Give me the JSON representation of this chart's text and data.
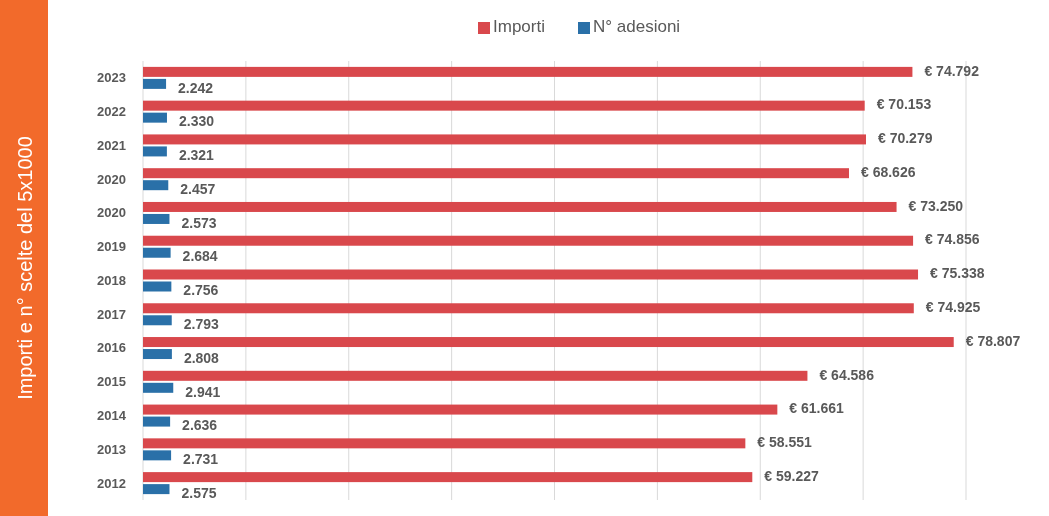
{
  "chart_data": {
    "type": "bar",
    "orientation": "horizontal",
    "ylabel": "Importi e n° scelte del 5x1000",
    "categories": [
      "2023",
      "2022",
      "2021",
      "2020",
      "2020",
      "2019",
      "2018",
      "2017",
      "2016",
      "2015",
      "2014",
      "2013",
      "2012"
    ],
    "series": [
      {
        "name": "Importi",
        "color": "#d9484c",
        "values": [
          74792,
          70153,
          70279,
          68626,
          73250,
          74856,
          75338,
          74925,
          78807,
          64586,
          61661,
          58551,
          59227
        ],
        "value_labels": [
          "€ 74.792",
          "€ 70.153",
          "€ 70.279",
          "€ 68.626",
          "€ 73.250",
          "€ 74.856",
          "€ 75.338",
          "€ 74.925",
          "€ 78.807",
          "€ 64.586",
          "€ 61.661",
          "€ 58.551",
          "€ 59.227"
        ]
      },
      {
        "name": "N° adesioni",
        "color": "#2a70a8",
        "values": [
          2242,
          2330,
          2321,
          2457,
          2573,
          2684,
          2756,
          2793,
          2808,
          2941,
          2636,
          2731,
          2575
        ],
        "value_labels": [
          "2.242",
          "2.330",
          "2.321",
          "2.457",
          "2.573",
          "2.684",
          "2.756",
          "2.793",
          "2.808",
          "2.941",
          "2.636",
          "2.731",
          "2.575"
        ]
      }
    ],
    "xlim": [
      0,
      80000
    ],
    "xticks": [
      {
        "value": 0,
        "label": null
      },
      {
        "value": 10000,
        "label": null
      },
      {
        "value": 20000,
        "label": null
      },
      {
        "value": 30000,
        "label": null
      },
      {
        "value": 40000,
        "label": null
      },
      {
        "value": 50000,
        "label": null
      },
      {
        "value": 60000,
        "label": null
      },
      {
        "value": 70000,
        "label": null
      },
      {
        "value": 80000,
        "label": null
      }
    ],
    "tick_labels": "y",
    "grid": "x",
    "legend": "top"
  }
}
